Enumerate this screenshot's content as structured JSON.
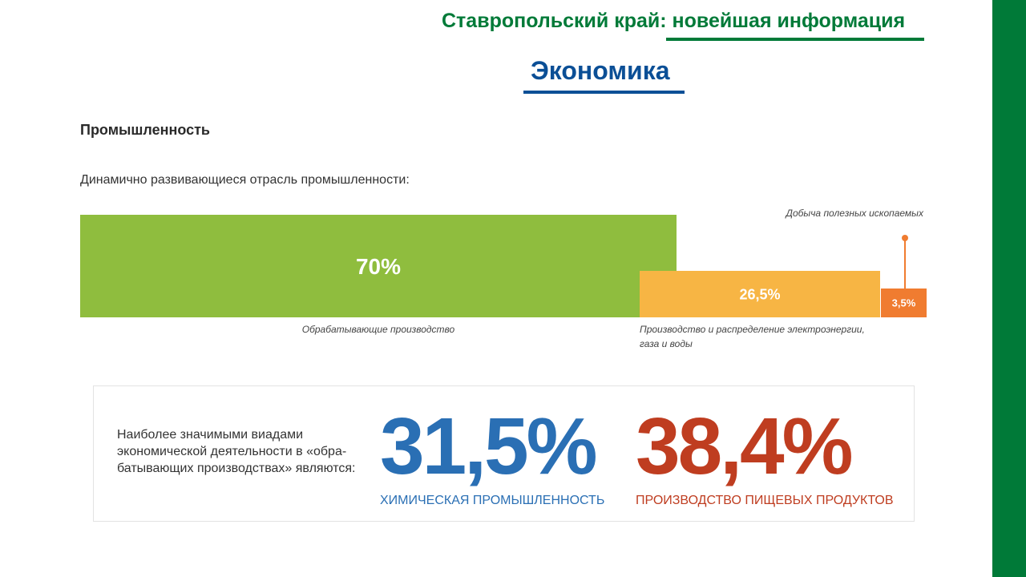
{
  "header": {
    "title": "Ставропольский край: новейшая информация",
    "section": "Экономика"
  },
  "industry": {
    "heading": "Промышленность",
    "subheading": "Динамично развивающиеся отрасль промышленности:"
  },
  "chart_data": {
    "type": "bar",
    "categories": [
      "Обрабатывающие производство",
      "Производство и распределение электроэнергии, газа и воды",
      "Добыча полезных ископаемых"
    ],
    "values": [
      70,
      26.5,
      3.5
    ],
    "value_labels": [
      "70%",
      "26,5%",
      "3,5%"
    ],
    "category_lines": [
      [
        "Обрабатывающие производство"
      ],
      [
        "Производство и распределение электроэнергии,",
        "газа и воды"
      ],
      [
        "Добыча полезных ископаемых"
      ]
    ],
    "colors": [
      "#8fbd3e",
      "#f7b544",
      "#f07c30"
    ],
    "unit": "%"
  },
  "stats": {
    "description": "Наиболее значимыми виадами экономической деятельности в «обра-батывающих производствах» являются:",
    "items": [
      {
        "value": "31,5%",
        "caption": "ХИМИЧЕСКАЯ ПРОМЫШЛЕННОСТЬ",
        "color": "#2a6fb4"
      },
      {
        "value": "38,4%",
        "caption": "ПРОИЗВОДСТВО ПИЩЕВЫХ ПРОДУКТОВ",
        "color": "#bf3d20"
      }
    ]
  },
  "theme": {
    "green": "#007a38",
    "blue": "#0b4f96"
  }
}
